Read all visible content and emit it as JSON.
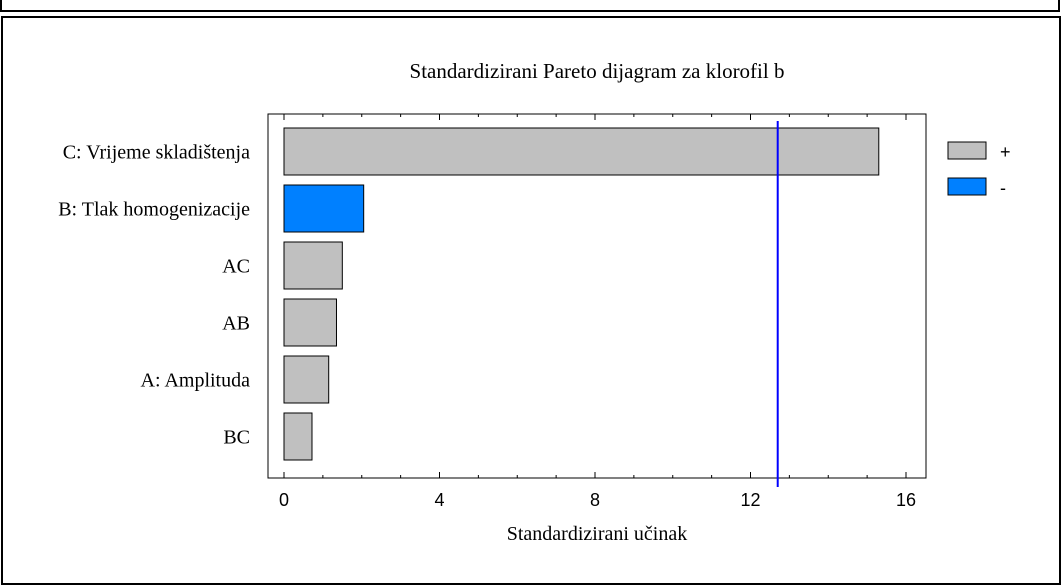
{
  "chart_data": {
    "type": "bar",
    "orientation": "horizontal",
    "title": "Standardizirani  Pareto dijagram  za klorofil  b",
    "xlabel": "Standardizirani  učinak",
    "ylabel": "",
    "xlim": [
      0,
      16
    ],
    "xticks": [
      "0",
      "4",
      "8",
      "12",
      "16"
    ],
    "categories": [
      "C: Vrijeme  skladištenja",
      "B: Tlak homogenizacije",
      "AC",
      "AB",
      "A: Amplituda",
      "BC"
    ],
    "values": [
      15.3,
      2.05,
      1.5,
      1.35,
      1.15,
      0.72
    ],
    "signs": [
      "+",
      "-",
      "+",
      "+",
      "+",
      "+"
    ],
    "reference_line": 12.7,
    "legend": [
      {
        "label": "+",
        "color": "#c0c0c0"
      },
      {
        "label": "-",
        "color": "#0080ff"
      }
    ],
    "legend_placement": "right",
    "grid": false
  },
  "colors": {
    "positive": "#c0c0c0",
    "negative": "#0080ff",
    "reference_line": "#0000ff"
  }
}
